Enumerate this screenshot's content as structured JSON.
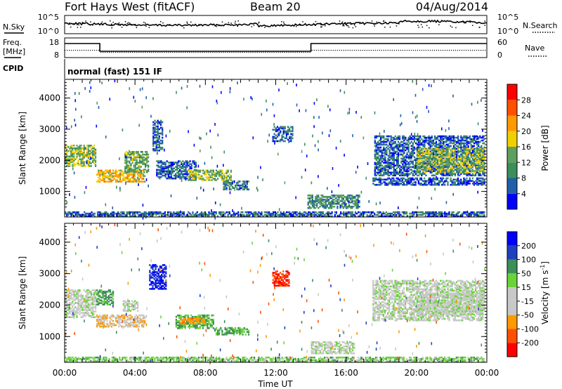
{
  "header": {
    "station": "Fort Hays West (fitACF)",
    "beam": "Beam 20",
    "date": "04/Aug/2014"
  },
  "strip_labels": {
    "nsky": "N.Sky",
    "nsearch": "N.Search",
    "freq_line1": "Freq.",
    "freq_line2": "[MHz]",
    "nave": "Nave",
    "cpid": "CPID",
    "cpid_text": "normal (fast) 151 IF"
  },
  "noise_ticks": {
    "left": [
      "10^5",
      "10^0"
    ],
    "right": [
      "10^5",
      "10^0"
    ]
  },
  "freq_ticks": {
    "left": [
      "18",
      "8"
    ],
    "right": [
      "60",
      "0"
    ]
  },
  "colors": {
    "power": [
      "#0000ff",
      "#2060a8",
      "#3e8e5a",
      "#5fa05f",
      "#f0d000",
      "#ff9900",
      "#ff5000",
      "#ff0000"
    ],
    "velocity": [
      "#ff0000",
      "#ff5000",
      "#ff9900",
      "#c8c8c8",
      "#c8c8c8",
      "#6ad33a",
      "#3e8e5a",
      "#2040c0",
      "#0000ff"
    ]
  },
  "chart_data": [
    {
      "type": "heatmap",
      "name": "power",
      "ylabel": "Slant Range [km]",
      "yticks": [
        1000,
        2000,
        3000,
        4000
      ],
      "ylim": [
        180,
        4600
      ],
      "xlim": [
        0,
        24
      ],
      "colorbar_label": "Power [dB]",
      "colorbar_ticks": [
        "4",
        "8",
        "12",
        "16",
        "20",
        "24",
        "28"
      ],
      "colorbar_range": [
        0,
        30
      ],
      "echo_regions": [
        {
          "t0": 0.0,
          "t1": 1.8,
          "r0": 1800,
          "r1": 2500,
          "value": 14
        },
        {
          "t0": 1.8,
          "t1": 4.6,
          "r0": 1300,
          "r1": 1700,
          "value": 18
        },
        {
          "t0": 3.4,
          "t1": 4.8,
          "r0": 1600,
          "r1": 2300,
          "value": 12
        },
        {
          "t0": 5.0,
          "t1": 5.6,
          "r0": 2300,
          "r1": 3300,
          "value": 6
        },
        {
          "t0": 5.2,
          "t1": 7.5,
          "r0": 1400,
          "r1": 2000,
          "value": 6
        },
        {
          "t0": 7.0,
          "t1": 9.5,
          "r0": 1350,
          "r1": 1700,
          "value": 14
        },
        {
          "t0": 9.0,
          "t1": 10.5,
          "r0": 1050,
          "r1": 1350,
          "value": 8
        },
        {
          "t0": 11.8,
          "t1": 13.0,
          "r0": 2600,
          "r1": 3100,
          "value": 6
        },
        {
          "t0": 13.8,
          "t1": 16.8,
          "r0": 450,
          "r1": 900,
          "value": 10
        },
        {
          "t0": 17.5,
          "t1": 23.9,
          "r0": 1200,
          "r1": 1450,
          "value": 5
        },
        {
          "t0": 17.6,
          "t1": 23.9,
          "r0": 1500,
          "r1": 2800,
          "value": 6
        },
        {
          "t0": 20.0,
          "t1": 23.9,
          "r0": 1600,
          "r1": 2400,
          "value": 14
        },
        {
          "t0": 0.0,
          "t1": 23.9,
          "r0": 190,
          "r1": 360,
          "value": 6
        }
      ]
    },
    {
      "type": "heatmap",
      "name": "velocity",
      "ylabel": "Slant Range [km]",
      "yticks": [
        1000,
        2000,
        3000,
        4000
      ],
      "ylim": [
        180,
        4600
      ],
      "xlim": [
        0,
        24
      ],
      "xlabel": "Time UT",
      "xticks": [
        "00:00",
        "04:00",
        "08:00",
        "12:00",
        "16:00",
        "20:00",
        "00:00"
      ],
      "colorbar_label": "Velocity [m s",
      "colorbar_label_sup": "-1",
      "colorbar_label_close": "]",
      "colorbar_ticks": [
        "-200",
        "-100",
        "-50",
        "-15",
        "15",
        "50",
        "100",
        "200"
      ],
      "echo_regions": [
        {
          "t0": 0.0,
          "t1": 1.8,
          "r0": 1600,
          "r1": 2500,
          "value": 0
        },
        {
          "t0": 1.8,
          "t1": 4.6,
          "r0": 1300,
          "r1": 1700,
          "value": -40
        },
        {
          "t0": 1.8,
          "t1": 2.8,
          "r0": 2000,
          "r1": 2500,
          "value": 60
        },
        {
          "t0": 3.3,
          "t1": 4.2,
          "r0": 1800,
          "r1": 2200,
          "value": 0
        },
        {
          "t0": 4.8,
          "t1": 5.8,
          "r0": 2500,
          "r1": 3300,
          "value": 200
        },
        {
          "t0": 6.3,
          "t1": 8.5,
          "r0": 1250,
          "r1": 1700,
          "value": 50
        },
        {
          "t0": 6.5,
          "t1": 8.0,
          "r0": 1400,
          "r1": 1600,
          "value": -80
        },
        {
          "t0": 8.5,
          "t1": 10.5,
          "r0": 1050,
          "r1": 1300,
          "value": 50
        },
        {
          "t0": 11.8,
          "t1": 12.8,
          "r0": 2600,
          "r1": 3100,
          "value": -200
        },
        {
          "t0": 14.0,
          "t1": 16.5,
          "r0": 450,
          "r1": 850,
          "value": 0
        },
        {
          "t0": 17.5,
          "t1": 23.9,
          "r0": 1500,
          "r1": 2800,
          "value": 0
        },
        {
          "t0": 20.0,
          "t1": 23.9,
          "r0": 1700,
          "r1": 2400,
          "value": 0
        },
        {
          "t0": 0.0,
          "t1": 23.9,
          "r0": 190,
          "r1": 360,
          "value": 30
        }
      ]
    }
  ]
}
